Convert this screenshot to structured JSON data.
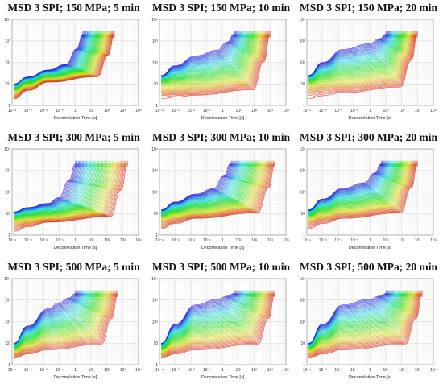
{
  "figure": {
    "xlabel": "Decorrelation Time [s]",
    "panels": [
      {
        "title": "MSD 3 SPI; 150 MPa; 5 min"
      },
      {
        "title": "MSD 3 SPI; 150 MPa; 10 min"
      },
      {
        "title": "MSD 3 SPI; 150 MPa; 20 min"
      },
      {
        "title": "MSD 3 SPI; 300 MPa; 5 min"
      },
      {
        "title": "MSD 3 SPI; 300 MPa; 10 min"
      },
      {
        "title": "MSD 3 SPI; 300 MPa; 20 min"
      },
      {
        "title": "MSD 3 SPI; 500 MPa; 5 min"
      },
      {
        "title": "MSD 3 SPI; 500 MPa; 10 min"
      },
      {
        "title": "MSD 3 SPI; 500 MPa; 20 min"
      }
    ]
  },
  "chart_data": [
    {
      "type": "line",
      "title": "MSD 3 SPI; 150 MPa; 5 min",
      "xlabel": "Decorrelation Time [s]",
      "ylabel": "",
      "x_scale": "log",
      "y_scale": "log",
      "xlim": [
        0.0001,
        10000
      ],
      "ylim": [
        1,
        10000
      ],
      "x_ticks": [
        "10⁻⁴",
        "10⁻³",
        "10⁻²",
        "10⁻¹",
        "1",
        "10¹",
        "10²",
        "10³",
        "10⁴"
      ],
      "y_ticks": [
        "1",
        "10",
        "10²",
        "10³",
        "10⁴"
      ],
      "grid": true,
      "colormap": "rainbow (early curves violet/blue, late curves green/red)",
      "series_summary": {
        "y_at_start": [
          2,
          10
        ],
        "plateau_y": [
          12,
          45
        ],
        "y_end": 2000,
        "x_end_range": [
          3,
          300
        ]
      }
    },
    {
      "type": "line",
      "title": "MSD 3 SPI; 150 MPa; 10 min",
      "xlabel": "Decorrelation Time [s]",
      "ylabel": "",
      "x_scale": "log",
      "y_scale": "log",
      "xlim": [
        0.0001,
        10000
      ],
      "ylim": [
        1,
        10000
      ],
      "x_ticks": [
        "10⁻⁴",
        "10⁻³",
        "10⁻²",
        "10⁻¹",
        "1",
        "10¹",
        "10²",
        "10³",
        "10⁴"
      ],
      "y_ticks": [
        "1",
        "10",
        "10²",
        "10³",
        "10⁴"
      ],
      "grid": true,
      "colormap": "rainbow (early curves violet/blue, late curves green/red)",
      "series_summary": {
        "y_at_start": [
          2,
          25
        ],
        "plateau_y": [
          3,
          200
        ],
        "y_end": 2000,
        "x_end_range": [
          5,
          1000
        ]
      }
    },
    {
      "type": "line",
      "title": "MSD 3 SPI; 150 MPa; 20 min",
      "xlabel": "Decorrelation Time [s]",
      "ylabel": "",
      "x_scale": "log",
      "y_scale": "log",
      "xlim": [
        0.0001,
        10000
      ],
      "ylim": [
        1,
        10000
      ],
      "x_ticks": [
        "10⁻⁴",
        "10⁻³",
        "10⁻²",
        "10⁻¹",
        "1",
        "10¹",
        "10²",
        "10³",
        "10⁴"
      ],
      "y_ticks": [
        "1",
        "10",
        "10²",
        "10³",
        "10⁴"
      ],
      "grid": true,
      "colormap": "rainbow (early curves violet/blue, late curves green/red)",
      "series_summary": {
        "y_at_start": [
          2,
          25
        ],
        "plateau_y": [
          4,
          400
        ],
        "y_end": 2000,
        "x_end_range": [
          10,
          1000
        ]
      }
    },
    {
      "type": "line",
      "title": "MSD 3 SPI; 300 MPa; 5 min",
      "xlabel": "Decorrelation Time [s]",
      "ylabel": "",
      "x_scale": "log",
      "y_scale": "log",
      "xlim": [
        0.0001,
        10000
      ],
      "ylim": [
        1,
        10000
      ],
      "x_ticks": [
        "10⁻⁴",
        "10⁻³",
        "10⁻²",
        "10⁻¹",
        "1",
        "10¹",
        "10²",
        "10³",
        "10⁴"
      ],
      "y_ticks": [
        "1",
        "10",
        "10²",
        "10³",
        "10⁴"
      ],
      "grid": true,
      "colormap": "rainbow (early curves violet/blue, late curves green/red)",
      "series_summary": {
        "y_at_start": [
          1.5,
          12
        ],
        "plateau_y": [
          4,
          30
        ],
        "y_end": 2000,
        "x_end_range": [
          1,
          2000
        ]
      }
    },
    {
      "type": "line",
      "title": "MSD 3 SPI; 300 MPa; 10 min",
      "xlabel": "Decorrelation Time [s]",
      "ylabel": "",
      "x_scale": "log",
      "y_scale": "log",
      "xlim": [
        0.0001,
        10000
      ],
      "ylim": [
        1,
        10000
      ],
      "x_ticks": [
        "10⁻⁴",
        "10⁻³",
        "10⁻²",
        "10⁻¹",
        "1",
        "10¹",
        "10²",
        "10³",
        "10⁴"
      ],
      "y_ticks": [
        "1",
        "10",
        "10²",
        "10³",
        "10⁴"
      ],
      "grid": true,
      "colormap": "rainbow (early curves violet/blue, late curves green/red)",
      "series_summary": {
        "y_at_start": [
          2,
          15
        ],
        "plateau_y": [
          6,
          80
        ],
        "y_end": 2000,
        "x_end_range": [
          3,
          2000
        ]
      }
    },
    {
      "type": "line",
      "title": "MSD 3 SPI; 300 MPa; 20 min",
      "xlabel": "Decorrelation Time [s]",
      "ylabel": "",
      "x_scale": "log",
      "y_scale": "log",
      "xlim": [
        0.0001,
        10000
      ],
      "ylim": [
        1,
        10000
      ],
      "x_ticks": [
        "10⁻⁴",
        "10⁻³",
        "10⁻²",
        "10⁻¹",
        "1",
        "10¹",
        "10²",
        "10³",
        "10⁴"
      ],
      "y_ticks": [
        "1",
        "10",
        "10²",
        "10³",
        "10⁴"
      ],
      "grid": true,
      "colormap": "rainbow (early curves violet/blue, late curves green/red)",
      "series_summary": {
        "y_at_start": [
          2,
          15
        ],
        "plateau_y": [
          6,
          150
        ],
        "y_end": 2000,
        "x_end_range": [
          5,
          1000
        ]
      }
    },
    {
      "type": "line",
      "title": "MSD 3 SPI; 500 MPa; 5 min",
      "xlabel": "Decorrelation Time [s]",
      "ylabel": "",
      "x_scale": "log",
      "y_scale": "log",
      "xlim": [
        0.0001,
        10000
      ],
      "ylim": [
        1,
        10000
      ],
      "x_ticks": [
        "10⁻⁴",
        "10⁻³",
        "10⁻²",
        "10⁻¹",
        "1",
        "10¹",
        "10²",
        "10³",
        "10⁴"
      ],
      "y_ticks": [
        "1",
        "10",
        "10²",
        "10³",
        "10⁴"
      ],
      "grid": true,
      "colormap": "rainbow (early curves violet/blue, late curves green/red)",
      "series_summary": {
        "y_at_start": [
          2,
          10
        ],
        "plateau_y": [
          5,
          400
        ],
        "y_end": 2000,
        "x_end_range": [
          1,
          500
        ]
      }
    },
    {
      "type": "line",
      "title": "MSD 3 SPI; 500 MPa; 10 min",
      "xlabel": "Decorrelation Time [s]",
      "ylabel": "",
      "x_scale": "log",
      "y_scale": "log",
      "xlim": [
        0.0001,
        10000
      ],
      "ylim": [
        1,
        10000
      ],
      "x_ticks": [
        "10⁻⁴",
        "10⁻³",
        "10⁻²",
        "10⁻¹",
        "1",
        "10¹",
        "10²",
        "10³",
        "10⁴"
      ],
      "y_ticks": [
        "1",
        "10",
        "10²",
        "10³",
        "10⁴"
      ],
      "grid": true,
      "colormap": "rainbow (early curves violet/blue, late curves green/red)",
      "series_summary": {
        "y_at_start": [
          2,
          10
        ],
        "plateau_y": [
          5,
          600
        ],
        "y_end": 2000,
        "x_end_range": [
          5,
          2000
        ]
      }
    },
    {
      "type": "line",
      "title": "MSD 3 SPI; 500 MPa; 20 min",
      "xlabel": "Decorrelation Time [s]",
      "ylabel": "",
      "x_scale": "log",
      "y_scale": "log",
      "xlim": [
        0.0001,
        10000
      ],
      "ylim": [
        1,
        10000
      ],
      "x_ticks": [
        "10⁻⁴",
        "10⁻³",
        "10⁻²",
        "10⁻¹",
        "1",
        "10¹",
        "10²",
        "10³",
        "10⁴"
      ],
      "y_ticks": [
        "1",
        "10",
        "10²",
        "10³",
        "10⁴"
      ],
      "grid": true,
      "colormap": "rainbow (early curves violet/blue, late curves green/red)",
      "series_summary": {
        "y_at_start": [
          2,
          10
        ],
        "plateau_y": [
          5,
          600
        ],
        "y_end": 2000,
        "x_end_range": [
          10,
          2000
        ]
      }
    }
  ]
}
